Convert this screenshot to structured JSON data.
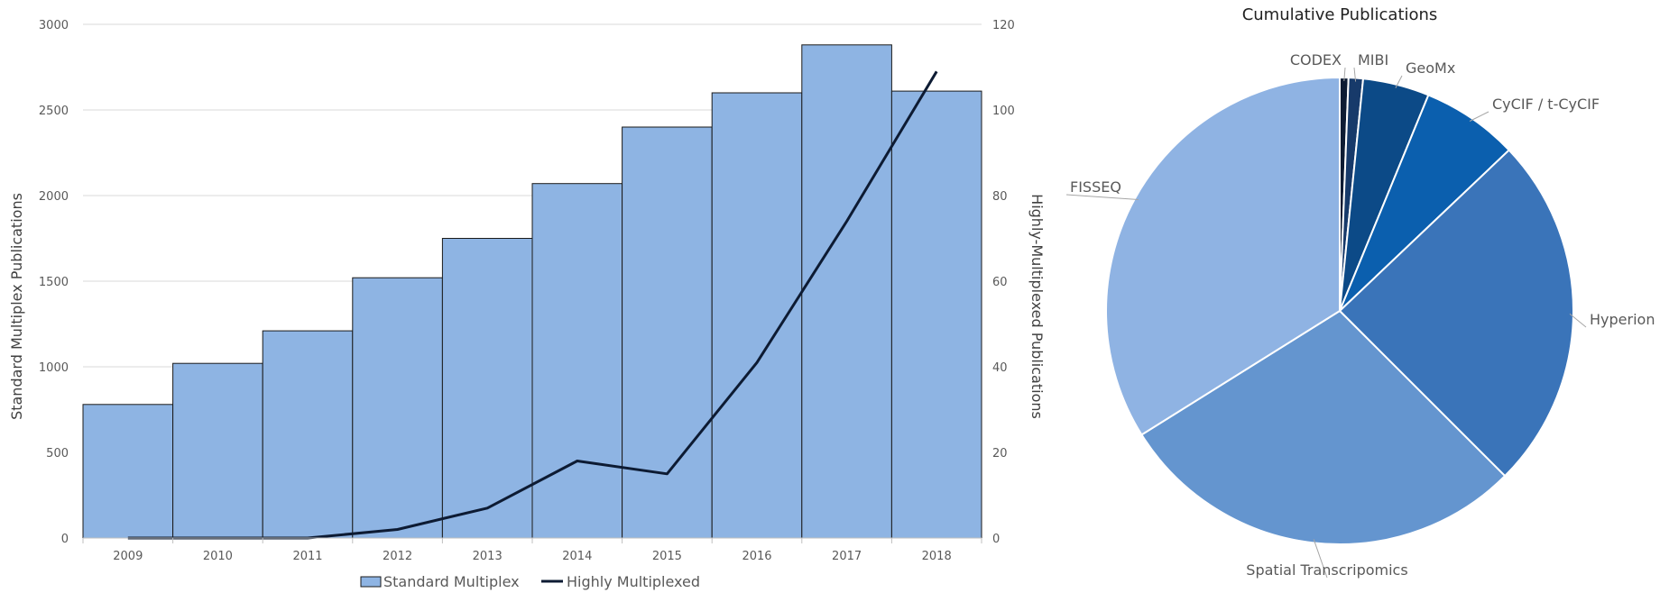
{
  "chart_data": [
    {
      "type": "bar",
      "title": "",
      "xlabel": "",
      "ylabel": "Standard Multiplex Publications",
      "y2label": "Highly-Multiplexed Publications",
      "categories": [
        "2009",
        "2010",
        "2011",
        "2012",
        "2013",
        "2014",
        "2015",
        "2016",
        "2017",
        "2018"
      ],
      "ylim": [
        0,
        3000
      ],
      "y2lim": [
        0,
        120
      ],
      "yticks": [
        "0",
        "500",
        "1000",
        "1500",
        "2000",
        "2500",
        "3000"
      ],
      "y2ticks": [
        "0",
        "20",
        "40",
        "60",
        "80",
        "100",
        "120"
      ],
      "grid": true,
      "legend": "bottom",
      "series": [
        {
          "name": "Standard Multiplex",
          "type": "bar",
          "axis": "left",
          "color": "#8eb4e3",
          "values": [
            780,
            1020,
            1210,
            1520,
            1750,
            2070,
            2400,
            2600,
            2880,
            2610
          ]
        },
        {
          "name": "Highly Multiplexed",
          "type": "line",
          "axis": "right",
          "color": "#0d1b33",
          "values": [
            0,
            0,
            0,
            2,
            7,
            18,
            15,
            41,
            74,
            109
          ]
        }
      ]
    },
    {
      "type": "pie",
      "title": "Cumulative Publications",
      "slices": [
        {
          "label": "CODEX",
          "value": 0.6,
          "color": "#0d1b33"
        },
        {
          "label": "MIBI",
          "value": 1.0,
          "color": "#173a6a"
        },
        {
          "label": "GeoMx",
          "value": 4.6,
          "color": "#0c4a87"
        },
        {
          "label": "CyCIF / t-CyCIF",
          "value": 6.7,
          "color": "#0b5fae"
        },
        {
          "label": "Hyperion",
          "value": 24.6,
          "color": "#3a74b9"
        },
        {
          "label": "Spatial Transcripomics",
          "value": 28.6,
          "color": "#6495cf"
        },
        {
          "label": "FISSEQ",
          "value": 33.9,
          "color": "#8fb3e3"
        }
      ]
    }
  ]
}
